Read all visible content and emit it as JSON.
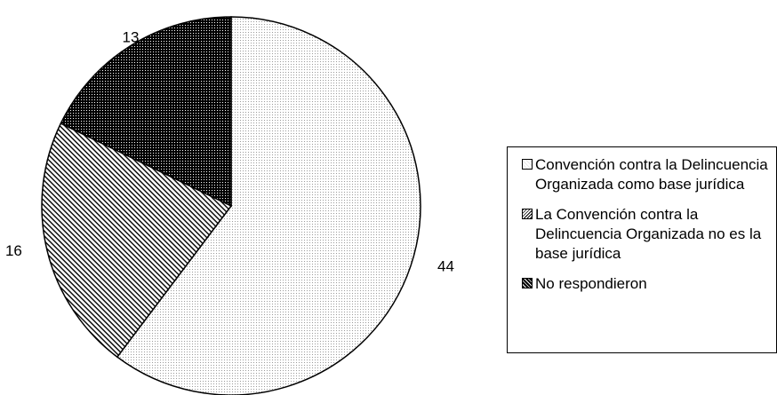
{
  "chart_data": {
    "type": "pie",
    "title": "",
    "slices": [
      {
        "label": "Convención contra la Delincuencia Organizada como base jurídica",
        "value": 44,
        "value_label": "44",
        "pattern": "fine-dots"
      },
      {
        "label": "La Convención contra la Delincuencia Organizada no es la base jurídica",
        "value": 16,
        "value_label": "16",
        "pattern": "diagonal-hatch"
      },
      {
        "label": "No respondieron",
        "value": 13,
        "value_label": "13",
        "pattern": "dense-dark"
      }
    ],
    "start_angle": "12 o'clock",
    "direction": "clockwise",
    "legend_position": "right"
  }
}
